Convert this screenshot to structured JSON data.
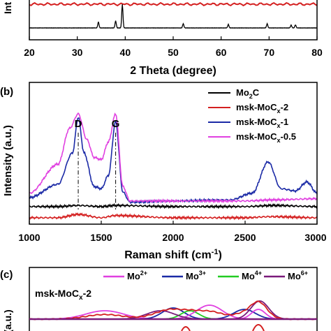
{
  "chart_data": [
    {
      "panel_label": "",
      "type": "line",
      "xlabel": "2 Theta (degree)",
      "ylabel": "Int",
      "xlim": [
        20,
        80
      ],
      "xticks": [
        20,
        30,
        40,
        50,
        60,
        70,
        80
      ],
      "grid": false,
      "series": [
        {
          "color": "#d42020",
          "x": [
            20,
            30,
            40,
            50,
            60,
            70,
            80
          ],
          "y": [
            1,
            1,
            1,
            1,
            1,
            1,
            1
          ]
        },
        {
          "color": "#000000",
          "x": [
            20,
            34.4,
            38.0,
            39.4,
            52.1,
            61.5,
            69.6,
            74.6,
            75.5,
            80
          ],
          "y": [
            0,
            0.25,
            0.3,
            1.0,
            0.18,
            0.15,
            0.18,
            0.12,
            0.13,
            0
          ]
        }
      ]
    },
    {
      "panel_label": "(b)",
      "type": "line",
      "xlabel": "Raman shift (cm⁻¹)",
      "ylabel": "Intensity (a.u.)",
      "xlim": [
        1000,
        3000
      ],
      "xticks": [
        1000,
        1500,
        2000,
        2500,
        3000
      ],
      "grid": false,
      "legend_position": "top-right",
      "annotations": [
        {
          "text": "D",
          "x": 1340
        },
        {
          "text": "G",
          "x": 1600
        }
      ],
      "series": [
        {
          "name": "Mo2C",
          "color": "#000000",
          "x": [
            1000,
            1200,
            1340,
            1500,
            1600,
            2000,
            2500,
            2700,
            3000
          ],
          "y": [
            0.02,
            0.02,
            0.03,
            0.02,
            0.03,
            0.02,
            0.02,
            0.03,
            0.02
          ]
        },
        {
          "name": "msk-MoCx-2",
          "color": "#d42020",
          "x": [
            1000,
            1200,
            1340,
            1500,
            1600,
            2000,
            2500,
            2680,
            3000
          ],
          "y": [
            -0.08,
            -0.08,
            -0.05,
            -0.08,
            -0.06,
            -0.08,
            -0.08,
            -0.07,
            -0.08
          ]
        },
        {
          "name": "msk-MoCx-1",
          "color": "#1b2aa6",
          "x": [
            1000,
            1200,
            1300,
            1340,
            1380,
            1450,
            1500,
            1550,
            1600,
            1650,
            1700,
            2000,
            2400,
            2550,
            2660,
            2750,
            2850,
            2930,
            3000
          ],
          "y": [
            0.1,
            0.22,
            0.5,
            0.82,
            0.5,
            0.2,
            0.18,
            0.3,
            0.78,
            0.15,
            0.06,
            0.07,
            0.08,
            0.14,
            0.42,
            0.18,
            0.16,
            0.24,
            0.14
          ]
        },
        {
          "name": "msk-MoCx-0.5",
          "color": "#e040e0",
          "x": [
            1000,
            1200,
            1280,
            1340,
            1400,
            1450,
            1500,
            1550,
            1600,
            1650,
            1700,
            2000,
            2500,
            2700,
            3000
          ],
          "y": [
            0.14,
            0.4,
            0.72,
            0.85,
            0.62,
            0.46,
            0.44,
            0.6,
            0.85,
            0.2,
            0.07,
            0.07,
            0.07,
            0.08,
            0.09
          ]
        }
      ],
      "legend_entries": [
        "Mo2C",
        "msk-MoCx-2",
        "msk-MoCx-1",
        "msk-MoCx-0.5"
      ]
    },
    {
      "panel_label": "(c)",
      "type": "area",
      "ylabel": "(a.u.)",
      "sample_label": "msk-MoCx-2",
      "legend_position": "top",
      "legend_entries": [
        {
          "name": "Mo2+",
          "color": "#e040e0"
        },
        {
          "name": "Mo3+",
          "color": "#1b2aa6"
        },
        {
          "name": "Mo4+",
          "color": "#22cc22"
        },
        {
          "name": "Mo6+",
          "color": "#7a1a7a"
        }
      ]
    }
  ],
  "legend": {
    "b": [
      {
        "base": "Mo",
        "sub": "2",
        "rest": "C"
      },
      {
        "base": "msk-MoC",
        "sub": "x",
        "rest": "-2"
      },
      {
        "base": "msk-MoC",
        "sub": "x",
        "rest": "-1"
      },
      {
        "base": "msk-MoC",
        "sub": "x",
        "rest": "-0.5"
      }
    ],
    "c": [
      {
        "base": "Mo",
        "sup": "2+"
      },
      {
        "base": "Mo",
        "sup": "3+"
      },
      {
        "base": "Mo",
        "sup": "4+"
      },
      {
        "base": "Mo",
        "sup": "6+"
      }
    ]
  },
  "text": {
    "a_xlabel": "2 Theta (degree)",
    "a_ylabel": "Int",
    "b_label": "(b)",
    "b_xlabel_main": "Raman shift (cm",
    "b_xlabel_sup": "-1",
    "b_xlabel_end": ")",
    "b_ylabel": "Intensity (a.u.)",
    "b_peak_d": "D",
    "b_peak_g": "G",
    "c_label": "(c)",
    "c_ylabel": "(a.u.)",
    "c_sample_base": "msk-MoC",
    "c_sample_sub": "x",
    "c_sample_rest": "-2"
  }
}
